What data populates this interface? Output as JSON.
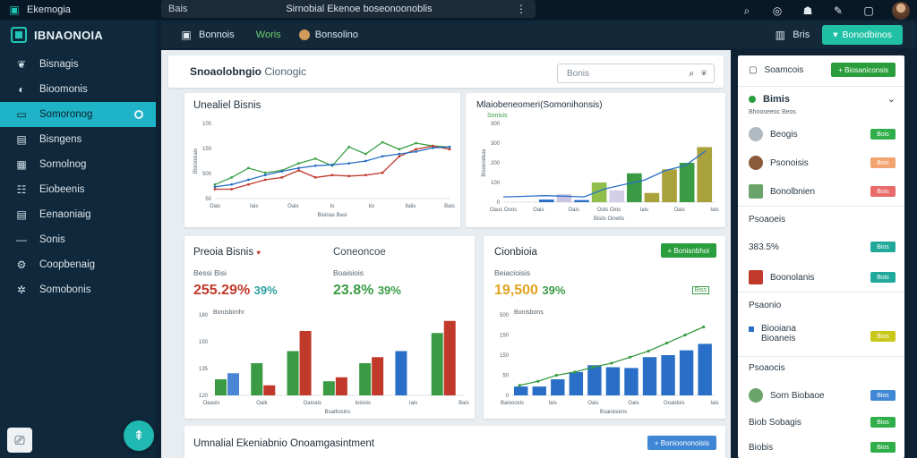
{
  "topbar": {
    "app_name": "Ekemogia",
    "tab_label": "Bais",
    "window_title": "Sirnobial Ekenoe boseonoonoblis",
    "icons": [
      "search-icon",
      "help-icon",
      "user-icon",
      "add-icon",
      "maximize-icon"
    ]
  },
  "sidebar": {
    "brand": "IBNAONOIA",
    "items": [
      {
        "label": "Bisnagis",
        "icon": "leaf-icon"
      },
      {
        "label": "Bioomonis",
        "icon": "drop-icon"
      },
      {
        "label": "Somoronog",
        "icon": "monitor-icon",
        "active": true
      },
      {
        "label": "Bisngens",
        "icon": "doc-icon"
      },
      {
        "label": "Sornolnog",
        "icon": "chart-icon"
      },
      {
        "label": "Eiobeenis",
        "icon": "people-icon"
      },
      {
        "label": "Eenaoniaig",
        "icon": "doc-icon"
      },
      {
        "label": "Sonis",
        "icon": "dash-icon"
      },
      {
        "label": "Coopbenaig",
        "icon": "gear-icon"
      },
      {
        "label": "Somobonis",
        "icon": "cog-icon"
      }
    ]
  },
  "mainhead": {
    "item1": "Bonnois",
    "item2": "Woris",
    "item3": "Bonsolino",
    "right_label": "Bris",
    "cta": "Bonodbinos"
  },
  "search_card": {
    "title": "Snoaolobngio",
    "title_suffix": "Cionogic",
    "search_placeholder": "Bonis"
  },
  "card1": {
    "title": "Unealiel Bisnis",
    "yticks": [
      "100",
      "150",
      "500",
      "50"
    ],
    "xticks": [
      "Oais",
      "Iais",
      "Oais",
      "Io",
      "Ioi",
      "Ilaiis",
      "Bais"
    ],
    "xlabel": "Bisinas Basi",
    "ylabel": "Bisioosiais"
  },
  "card2": {
    "title": "Mlaiobeneomeri(Somonihonsis)",
    "subtitle": "Sonisis",
    "yticks": [
      "300",
      "300",
      "200",
      "100",
      "0"
    ],
    "xticks": [
      "Oaus Ooos",
      "Oais",
      "Oais",
      "Ools Oios",
      "Iais",
      "Oais",
      "Iais"
    ],
    "xlabel": "Bisils Oinetis",
    "ylabel": "Bisonoebas"
  },
  "card3": {
    "title": "Preoia Bisnis",
    "title_right": "Coneoncoe",
    "kpi_left_label": "Bessi Bisi",
    "kpi_left_value": "255.29%",
    "kpi_left_pct": "39%",
    "kpi_right_label": "Boaisiois",
    "kpi_right_value": "23.8%",
    "kpi_right_pct": "39%",
    "chart_label": "Bonisbimhr",
    "yticks": [
      "180",
      "150",
      "135",
      "120"
    ],
    "xticks": [
      "Oaaois",
      "Oaik",
      "Oaioais",
      "Ioioois",
      "Iais",
      "Bais"
    ],
    "xlabel": "Bsaitiosins"
  },
  "card4": {
    "title": "Cionbioia",
    "button": "Bonisnbhoi",
    "kpi_label": "Beiacioisis",
    "kpi_value": "19,500",
    "kpi_pct": "39%",
    "kpi_badge": "Biss",
    "chart_label": "Bonisbons",
    "yticks": [
      "500",
      "150",
      "150",
      "50",
      "0"
    ],
    "xticks": [
      "Baiooosis",
      "Iais",
      "Oais",
      "Oais",
      "Ooaidois",
      "Iais"
    ],
    "xlabel": "Bsaioisiens"
  },
  "card5": {
    "title": "Umnalial Ekeniabnio Onoamgasintment",
    "button": "Bonioononoisis"
  },
  "rightpanel": {
    "search_label": "Soamcois",
    "button": "Biosaniconsis",
    "section1": "Bimis",
    "section1_sub": "Bhooseeoc Beos",
    "rows": [
      {
        "label": "Beogis",
        "badge": "Bois",
        "color": "#2fae4a"
      },
      {
        "label": "Psonoisis",
        "badge": "Bois",
        "color": "#f2a36e"
      },
      {
        "label": "Bonolbnien",
        "badge": "Bois",
        "color": "#e86a6a"
      }
    ],
    "section2": "Psoaoeis",
    "rows2": [
      {
        "label": "383.5%",
        "badge": "Bios",
        "color": "#20a99a"
      },
      {
        "label": "Boonolanis",
        "badge": "Bois",
        "color": "#20a99a"
      }
    ],
    "section3": "Psaonio",
    "rows3": [
      {
        "label": "Biooiana",
        "sub": "Bioaneis",
        "badge": "Bios",
        "color": "#c9c71a"
      }
    ],
    "section4": "Psoaocis",
    "rows4": [
      {
        "label": "Sorn Biobaoe",
        "badge": "Bios",
        "color": "#3f86d4"
      },
      {
        "label": "Biob Sobagis",
        "badge": "Bios",
        "color": "#2fae4a"
      },
      {
        "label": "Biobis",
        "badge": "Bios",
        "color": "#2fae4a"
      }
    ]
  },
  "colors": {
    "accent": "#1eb3c6",
    "green": "#2a9d3c",
    "red": "#c0392b",
    "blue": "#2a6fc7",
    "olive": "#a7a737"
  },
  "chart_data": [
    {
      "type": "line",
      "title": "Unealiel Bisnis",
      "x": [
        1,
        2,
        3,
        4,
        5,
        6,
        7,
        8,
        9,
        10,
        11,
        12,
        13,
        14,
        15
      ],
      "series": [
        {
          "values": [
            30,
            45,
            65,
            55,
            60,
            75,
            85,
            70,
            110,
            95,
            120,
            105,
            118,
            112,
            110
          ],
          "color": "#3da046"
        },
        {
          "values": [
            20,
            20,
            30,
            40,
            45,
            60,
            45,
            50,
            48,
            50,
            55,
            90,
            105,
            112,
            105
          ],
          "color": "#c0392b"
        },
        {
          "values": [
            25,
            30,
            40,
            50,
            58,
            65,
            70,
            72,
            75,
            80,
            90,
            95,
            100,
            108,
            110
          ],
          "color": "#2a6fc7"
        }
      ],
      "ylim": [
        0,
        160
      ]
    },
    {
      "type": "bar",
      "title": "Mlaiobeneomeri(Somonihonsis)",
      "bars": [
        {
          "v": 10,
          "c": "#2a6fc7"
        },
        {
          "v": 30,
          "c": "#c9c4e2"
        },
        {
          "v": 8,
          "c": "#2a6fc7"
        },
        {
          "v": 75,
          "c": "#8fbf4a"
        },
        {
          "v": 45,
          "c": "#d3cfe8"
        },
        {
          "v": 110,
          "c": "#3a9b44"
        },
        {
          "v": 35,
          "c": "#a9a23c"
        },
        {
          "v": 125,
          "c": "#a9a23c"
        },
        {
          "v": 150,
          "c": "#3a9b44"
        },
        {
          "v": 210,
          "c": "#a9a23c"
        }
      ],
      "line": [
        20,
        22,
        25,
        23,
        20,
        50,
        68,
        85,
        120,
        140,
        195
      ],
      "ylim": [
        0,
        300
      ]
    },
    {
      "type": "bar",
      "title": "Preoia Bisnis",
      "groups": [
        {
          "values": [
            40,
            55
          ],
          "colors": [
            "#3a9b44",
            "#4a86d4"
          ]
        },
        {
          "values": [
            80,
            25
          ],
          "colors": [
            "#3a9b44",
            "#c0392b"
          ]
        },
        {
          "values": [
            110,
            160
          ],
          "colors": [
            "#3a9b44",
            "#c0392b"
          ]
        },
        {
          "values": [
            35,
            45
          ],
          "colors": [
            "#3a9b44",
            "#c0392b"
          ]
        },
        {
          "values": [
            80,
            95
          ],
          "colors": [
            "#3a9b44",
            "#c0392b"
          ]
        },
        {
          "values": [
            110,
            0
          ],
          "colors": [
            "#2a6fc7",
            "#2a6fc7"
          ]
        },
        {
          "values": [
            155,
            185
          ],
          "colors": [
            "#3a9b44",
            "#c0392b"
          ]
        }
      ],
      "ylim": [
        0,
        200
      ]
    },
    {
      "type": "bar",
      "title": "Cionbioia",
      "bars": [
        22,
        22,
        40,
        58,
        75,
        70,
        68,
        95,
        100,
        112,
        128
      ],
      "line": [
        25,
        35,
        50,
        58,
        70,
        80,
        95,
        110,
        130,
        150,
        170
      ],
      "ylim": [
        0,
        200
      ]
    }
  ]
}
